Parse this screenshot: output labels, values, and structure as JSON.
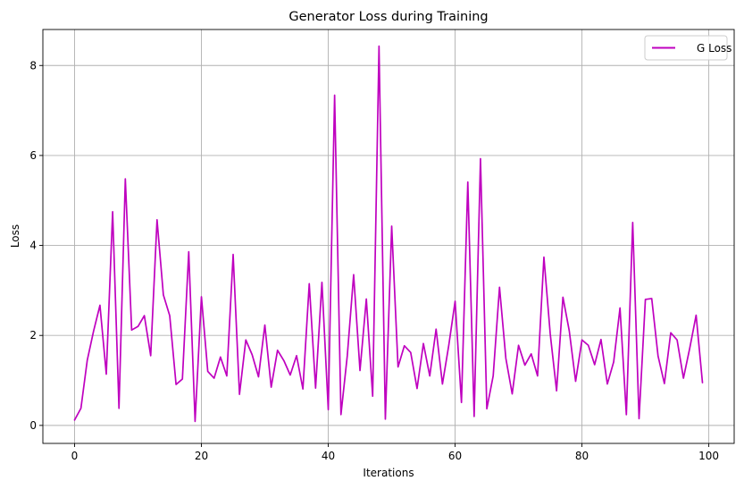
{
  "chart_data": {
    "type": "line",
    "title": "Generator Loss during Training",
    "xlabel": "Iterations",
    "ylabel": "Loss",
    "xlim": [
      -5,
      104
    ],
    "ylim": [
      -0.4,
      8.8
    ],
    "x_ticks": [
      0,
      20,
      40,
      60,
      80,
      100
    ],
    "y_ticks": [
      0,
      2,
      4,
      6,
      8
    ],
    "x_tick_labels": [
      "0",
      "20",
      "40",
      "60",
      "80",
      "100"
    ],
    "y_tick_labels": [
      "0",
      "2",
      "4",
      "6",
      "8"
    ],
    "grid": true,
    "legend_position": "top-right",
    "series": [
      {
        "name": "G Loss",
        "color": "#bf00bf",
        "x": [
          0,
          1,
          2,
          3,
          4,
          5,
          6,
          7,
          8,
          9,
          10,
          11,
          12,
          13,
          14,
          15,
          16,
          17,
          18,
          19,
          20,
          21,
          22,
          23,
          24,
          25,
          26,
          27,
          28,
          29,
          30,
          31,
          32,
          33,
          34,
          35,
          36,
          37,
          38,
          39,
          40,
          41,
          42,
          43,
          44,
          45,
          46,
          47,
          48,
          49,
          50,
          51,
          52,
          53,
          54,
          55,
          56,
          57,
          58,
          59,
          60,
          61,
          62,
          63,
          64,
          65,
          66,
          67,
          68,
          69,
          70,
          71,
          72,
          73,
          74,
          75,
          76,
          77,
          78,
          79,
          80,
          81,
          82,
          83,
          84,
          85,
          86,
          87,
          88,
          89,
          90,
          91,
          92,
          93,
          94,
          95,
          96,
          97,
          98,
          99
        ],
        "values": [
          0.12,
          0.38,
          1.45,
          2.1,
          2.67,
          1.14,
          4.75,
          0.38,
          5.48,
          2.12,
          2.2,
          2.44,
          1.55,
          4.57,
          2.9,
          2.44,
          0.91,
          1.03,
          3.86,
          0.09,
          2.86,
          1.2,
          1.05,
          1.52,
          1.1,
          3.8,
          0.69,
          1.9,
          1.57,
          1.08,
          2.23,
          0.85,
          1.67,
          1.44,
          1.12,
          1.55,
          0.81,
          3.15,
          0.83,
          3.18,
          0.35,
          7.34,
          0.24,
          1.55,
          3.35,
          1.22,
          2.81,
          0.65,
          8.43,
          0.14,
          4.43,
          1.3,
          1.77,
          1.62,
          0.82,
          1.82,
          1.1,
          2.14,
          0.92,
          1.78,
          2.76,
          0.51,
          5.41,
          0.2,
          5.93,
          0.37,
          1.1,
          3.07,
          1.49,
          0.7,
          1.78,
          1.34,
          1.59,
          1.1,
          3.74,
          2.03,
          0.77,
          2.85,
          2.1,
          0.98,
          1.9,
          1.78,
          1.35,
          1.91,
          0.92,
          1.41,
          2.61,
          0.24,
          4.51,
          0.15,
          2.8,
          2.82,
          1.54,
          0.93,
          2.06,
          1.9,
          1.05,
          1.72,
          2.45,
          0.95
        ]
      }
    ]
  }
}
